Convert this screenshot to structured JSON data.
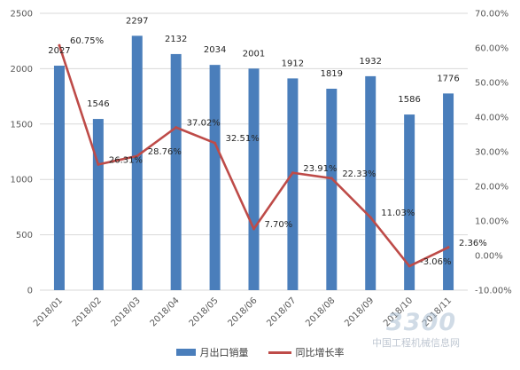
{
  "chart_data": {
    "type": "bar",
    "categories": [
      "2018/01",
      "2018/02",
      "2018/03",
      "2018/04",
      "2018/05",
      "2018/06",
      "2018/07",
      "2018/08",
      "2018/09",
      "2018/10",
      "2018/11"
    ],
    "series": [
      {
        "name": "月出口销量",
        "type": "bar",
        "axis": "left",
        "color": "#4a7ebb",
        "values": [
          2027,
          1546,
          2297,
          2132,
          2034,
          2001,
          1912,
          1819,
          1932,
          1586,
          1776
        ],
        "labels": [
          "2027",
          "1546",
          "2297",
          "2132",
          "2034",
          "2001",
          "1912",
          "1819",
          "1932",
          "1586",
          "1776"
        ]
      },
      {
        "name": "同比增长率",
        "type": "line",
        "axis": "right",
        "color": "#be4b48",
        "values": [
          60.75,
          26.31,
          28.76,
          37.02,
          32.51,
          7.7,
          23.91,
          22.33,
          11.03,
          -3.06,
          2.36
        ],
        "labels": [
          "60.75%",
          "26.31%",
          "28.76%",
          "37.02%",
          "32.51%",
          "7.70%",
          "23.91%",
          "22.33%",
          "11.03%",
          "-3.06%",
          "2.36%"
        ]
      }
    ],
    "y_left": {
      "lim": [
        0,
        2500
      ],
      "ticks": [
        "0",
        "500",
        "1000",
        "1500",
        "2000",
        "2500"
      ]
    },
    "y_right": {
      "lim": [
        -10,
        70
      ],
      "ticks": [
        "-10.00%",
        "0.00%",
        "10.00%",
        "20.00%",
        "30.00%",
        "40.00%",
        "50.00%",
        "60.00%",
        "70.00%"
      ]
    },
    "grid": true,
    "legend_position": "bottom"
  },
  "legend": {
    "bar_label": "月出口销量",
    "line_label": "同比增长率"
  },
  "watermark": {
    "logo": "3300",
    "sub": "中国工程机械信息网"
  }
}
